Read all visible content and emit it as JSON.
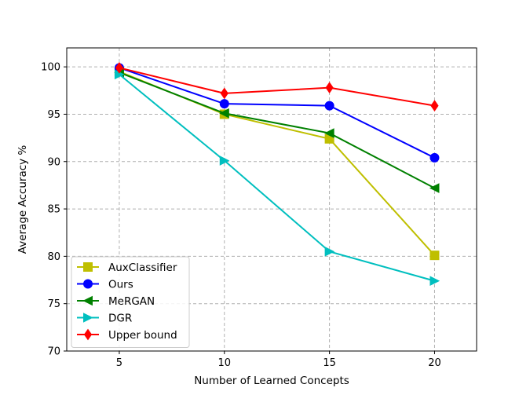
{
  "chart_data": {
    "type": "line",
    "title": "",
    "xlabel": "Number of Learned Concepts",
    "ylabel": "Average Accuracy %",
    "x": [
      5,
      10,
      15,
      20
    ],
    "xlim": [
      2.5,
      22
    ],
    "ylim": [
      70,
      102
    ],
    "xticks": [
      5,
      10,
      15,
      20
    ],
    "yticks": [
      70,
      75,
      80,
      85,
      90,
      95,
      100
    ],
    "grid": true,
    "legend_position": "lower-left",
    "series": [
      {
        "name": "AuxClassifier",
        "values": [
          99.5,
          95.0,
          92.4,
          80.1
        ],
        "color": "#bfbf00",
        "marker": "square"
      },
      {
        "name": "Ours",
        "values": [
          99.9,
          96.1,
          95.9,
          90.4
        ],
        "color": "#0000ff",
        "marker": "circle"
      },
      {
        "name": "MeRGAN",
        "values": [
          99.4,
          95.1,
          93.0,
          87.2
        ],
        "color": "#008000",
        "marker": "triangle-left"
      },
      {
        "name": "DGR",
        "values": [
          99.2,
          90.1,
          80.5,
          77.4
        ],
        "color": "#00bfbf",
        "marker": "triangle-right"
      },
      {
        "name": "Upper bound",
        "values": [
          99.9,
          97.2,
          97.8,
          95.9
        ],
        "color": "#ff0000",
        "marker": "diamond"
      }
    ]
  }
}
